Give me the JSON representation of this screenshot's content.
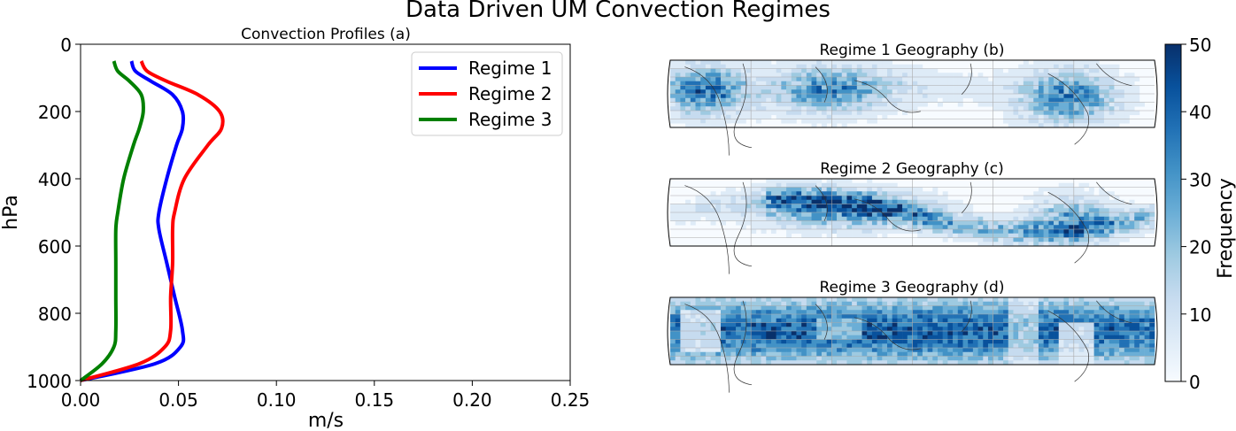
{
  "figure": {
    "title": "Data Driven UM Convection Regimes"
  },
  "chart_data": [
    {
      "type": "line",
      "title": "Convection Profiles (a)",
      "xlabel": "m/s",
      "ylabel": "hPa",
      "xlim": [
        0,
        0.25
      ],
      "ylim": [
        1000,
        0
      ],
      "y_inverted": true,
      "xticks": [
        "0.00",
        "0.05",
        "0.10",
        "0.15",
        "0.20",
        "0.25"
      ],
      "yticks": [
        "0",
        "200",
        "400",
        "600",
        "800",
        "1000"
      ],
      "legend_position": "top-right",
      "grid": false,
      "series": [
        {
          "name": "Regime 1",
          "color": "#0000ff",
          "x": [
            0.026,
            0.028,
            0.036,
            0.047,
            0.052,
            0.052,
            0.049,
            0.044,
            0.04,
            0.04,
            0.044,
            0.048,
            0.052,
            0.051,
            0.038,
            0.0
          ],
          "y": [
            50,
            80,
            110,
            150,
            200,
            250,
            300,
            400,
            500,
            550,
            650,
            750,
            850,
            900,
            950,
            1000
          ]
        },
        {
          "name": "Regime 2",
          "color": "#ff0000",
          "x": [
            0.031,
            0.034,
            0.044,
            0.06,
            0.071,
            0.072,
            0.065,
            0.053,
            0.048,
            0.047,
            0.047,
            0.046,
            0.046,
            0.043,
            0.03,
            0.0
          ],
          "y": [
            50,
            80,
            110,
            150,
            200,
            250,
            300,
            400,
            500,
            550,
            650,
            750,
            850,
            900,
            950,
            1000
          ]
        },
        {
          "name": "Regime 3",
          "color": "#008000",
          "x": [
            0.017,
            0.019,
            0.025,
            0.031,
            0.032,
            0.03,
            0.027,
            0.022,
            0.019,
            0.018,
            0.018,
            0.018,
            0.018,
            0.017,
            0.011,
            0.0
          ],
          "y": [
            50,
            80,
            110,
            150,
            200,
            250,
            300,
            400,
            500,
            550,
            650,
            750,
            850,
            900,
            950,
            1000
          ]
        }
      ]
    },
    {
      "type": "heatmap",
      "title": "Regime 1 Geography (b)",
      "description": "global map, frequency concentrated over Congo basin, Maritime Continent and Amazon",
      "colorscale": "Blues"
    },
    {
      "type": "heatmap",
      "title": "Regime 2 Geography (c)",
      "description": "global map, frequency concentrated along ITCZ / Indo-Pacific warm pool and South America",
      "colorscale": "Blues"
    },
    {
      "type": "heatmap",
      "title": "Regime 3 Geography (d)",
      "description": "global map, high frequency across most tropical oceans",
      "colorscale": "Blues"
    }
  ],
  "colorbar": {
    "label": "Frequency",
    "min": 0,
    "max": 50,
    "ticks": [
      "0",
      "10",
      "20",
      "30",
      "40",
      "50"
    ],
    "colors": [
      "#f7fbff",
      "#deebf7",
      "#c6dbef",
      "#9ecae1",
      "#6baed6",
      "#4292c6",
      "#2171b5",
      "#08519c",
      "#08306b"
    ]
  }
}
